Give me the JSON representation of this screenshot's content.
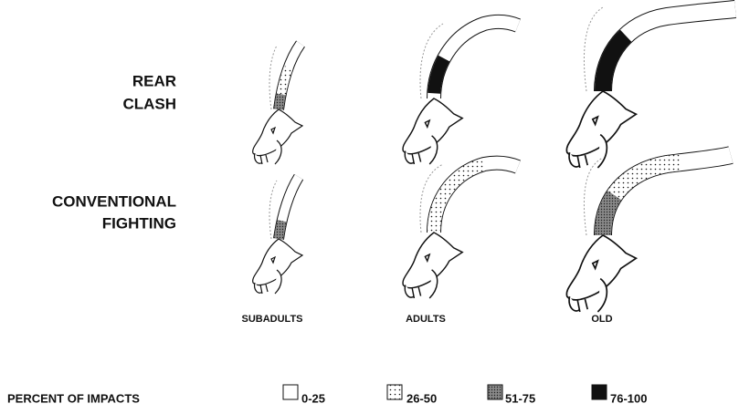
{
  "rows": [
    {
      "label_lines": [
        "REAR",
        "CLASH"
      ]
    },
    {
      "label_lines": [
        "CONVENTIONAL",
        "FIGHTING"
      ]
    }
  ],
  "columns": [
    "SUBADULTS",
    "ADULTS",
    "OLD"
  ],
  "legend": {
    "title": "PERCENT OF IMPACTS",
    "items": [
      "0-25",
      "26-50",
      "51-75",
      "76-100"
    ]
  }
}
